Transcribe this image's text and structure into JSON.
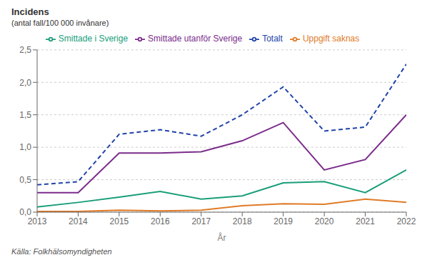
{
  "chart_data": {
    "type": "line",
    "title": "Incidens",
    "subtitle": "(antal fall/100 000 invånare)",
    "xlabel": "År",
    "x": [
      2013,
      2014,
      2015,
      2016,
      2017,
      2018,
      2019,
      2020,
      2021,
      2022
    ],
    "series": [
      {
        "name": "Smittade i Sverige",
        "color": "#1a9e7a",
        "values": [
          0.08,
          0.15,
          0.23,
          0.32,
          0.2,
          0.25,
          0.45,
          0.47,
          0.3,
          0.65
        ]
      },
      {
        "name": "Smittade utanför Sverige",
        "color": "#7b2d8b",
        "values": [
          0.3,
          0.3,
          0.91,
          0.91,
          0.93,
          1.1,
          1.38,
          0.65,
          0.81,
          1.5
        ]
      },
      {
        "name": "Uppgift saknas",
        "color": "#e07b28",
        "values": [
          0.01,
          0.01,
          0.03,
          0.02,
          0.03,
          0.1,
          0.13,
          0.12,
          0.2,
          0.15
        ]
      },
      {
        "name": "Totalt",
        "color": "#2244aa",
        "line_style": "dashed",
        "values": [
          0.42,
          0.47,
          1.2,
          1.27,
          1.17,
          1.5,
          1.93,
          1.25,
          1.31,
          2.28
        ]
      }
    ],
    "xlim": [
      2013,
      2022
    ],
    "xticks": [
      2013,
      2014,
      2015,
      2016,
      2017,
      2018,
      2019,
      2020,
      2021,
      2022
    ],
    "ylim": [
      0,
      2.5
    ],
    "yticks": [
      {
        "value": 0.0,
        "label": "0,0"
      },
      {
        "value": 0.5,
        "label": "0,5"
      },
      {
        "value": 1.0,
        "label": "1,0"
      },
      {
        "value": 1.5,
        "label": "1,5"
      },
      {
        "value": 2.0,
        "label": "2,0"
      },
      {
        "value": 2.5,
        "label": "2,5"
      }
    ],
    "grid": "y",
    "legend": "top",
    "annotations": [
      "Källa: Folkhälsomyndigheten"
    ]
  }
}
